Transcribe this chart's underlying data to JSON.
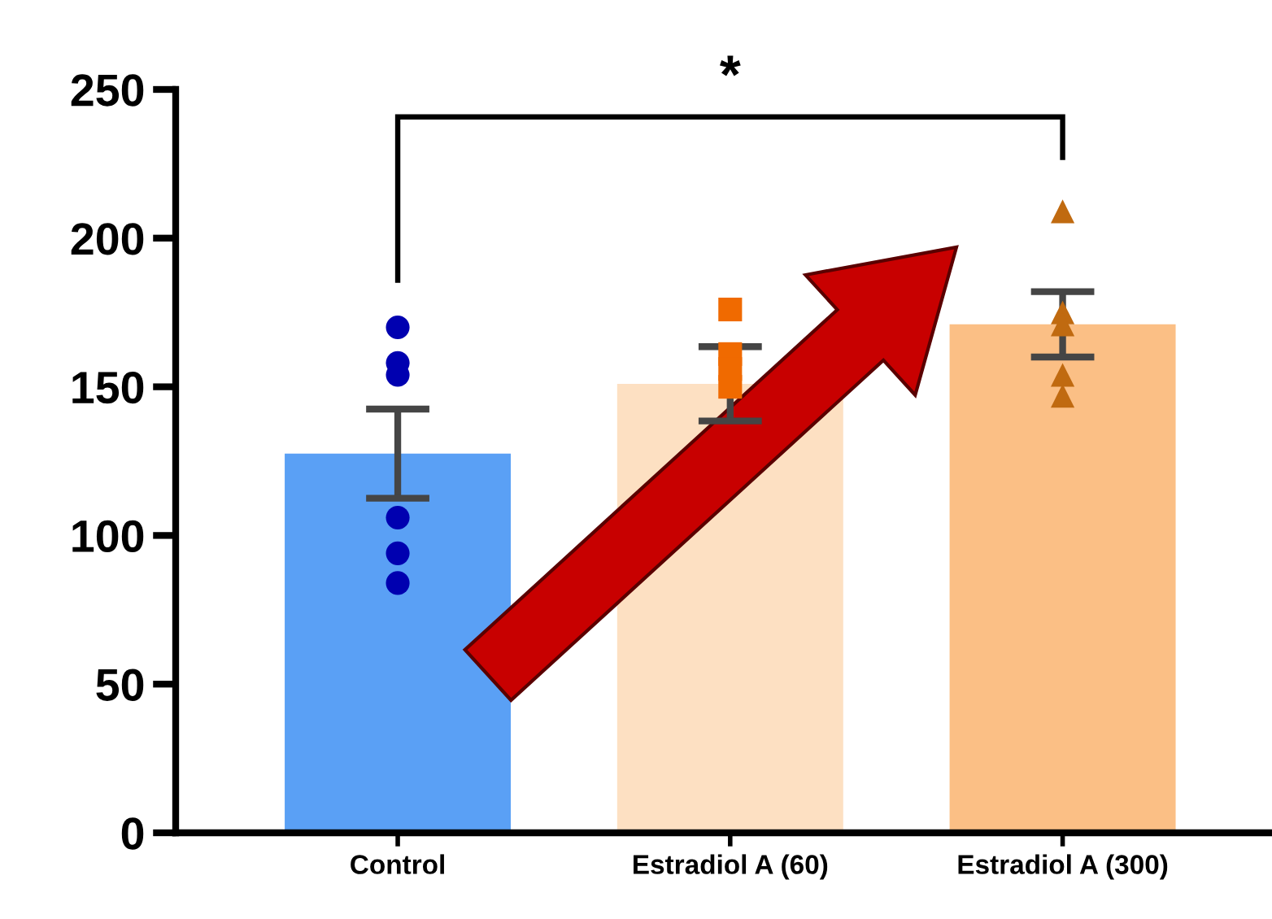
{
  "chart_data": {
    "type": "bar",
    "categories": [
      "Control",
      "Estradiol A (60)",
      "Estradiol A (300)"
    ],
    "ylim": [
      0,
      250
    ],
    "yticks": [
      0,
      50,
      100,
      150,
      200,
      250
    ],
    "grid": false,
    "legend": false,
    "series": [
      {
        "type": "bar",
        "values": [
          127.5,
          151,
          171
        ],
        "colors": [
          "#5aa0f5",
          "#fde0c2",
          "#fbbf85"
        ],
        "errors": [
          15,
          12.5,
          11
        ]
      },
      {
        "type": "scatter",
        "marker": "circle",
        "color": "#0000b0",
        "x": [
          "Control",
          "Control",
          "Control",
          "Control",
          "Control",
          "Control"
        ],
        "values": [
          170,
          158,
          154,
          106,
          94,
          84
        ]
      },
      {
        "type": "scatter",
        "marker": "square",
        "color": "#f06a00",
        "x": [
          "Estradiol A (60)",
          "Estradiol A (60)",
          "Estradiol A (60)",
          "Estradiol A (60)"
        ],
        "values": [
          176,
          161,
          156,
          150
        ]
      },
      {
        "type": "scatter",
        "marker": "triangle",
        "color": "#c06a10",
        "x": [
          "Estradiol A (300)",
          "Estradiol A (300)",
          "Estradiol A (300)",
          "Estradiol A (300)",
          "Estradiol A (300)"
        ],
        "values": [
          209,
          175,
          171,
          154,
          147
        ]
      }
    ],
    "annotations": [
      "*"
    ]
  }
}
